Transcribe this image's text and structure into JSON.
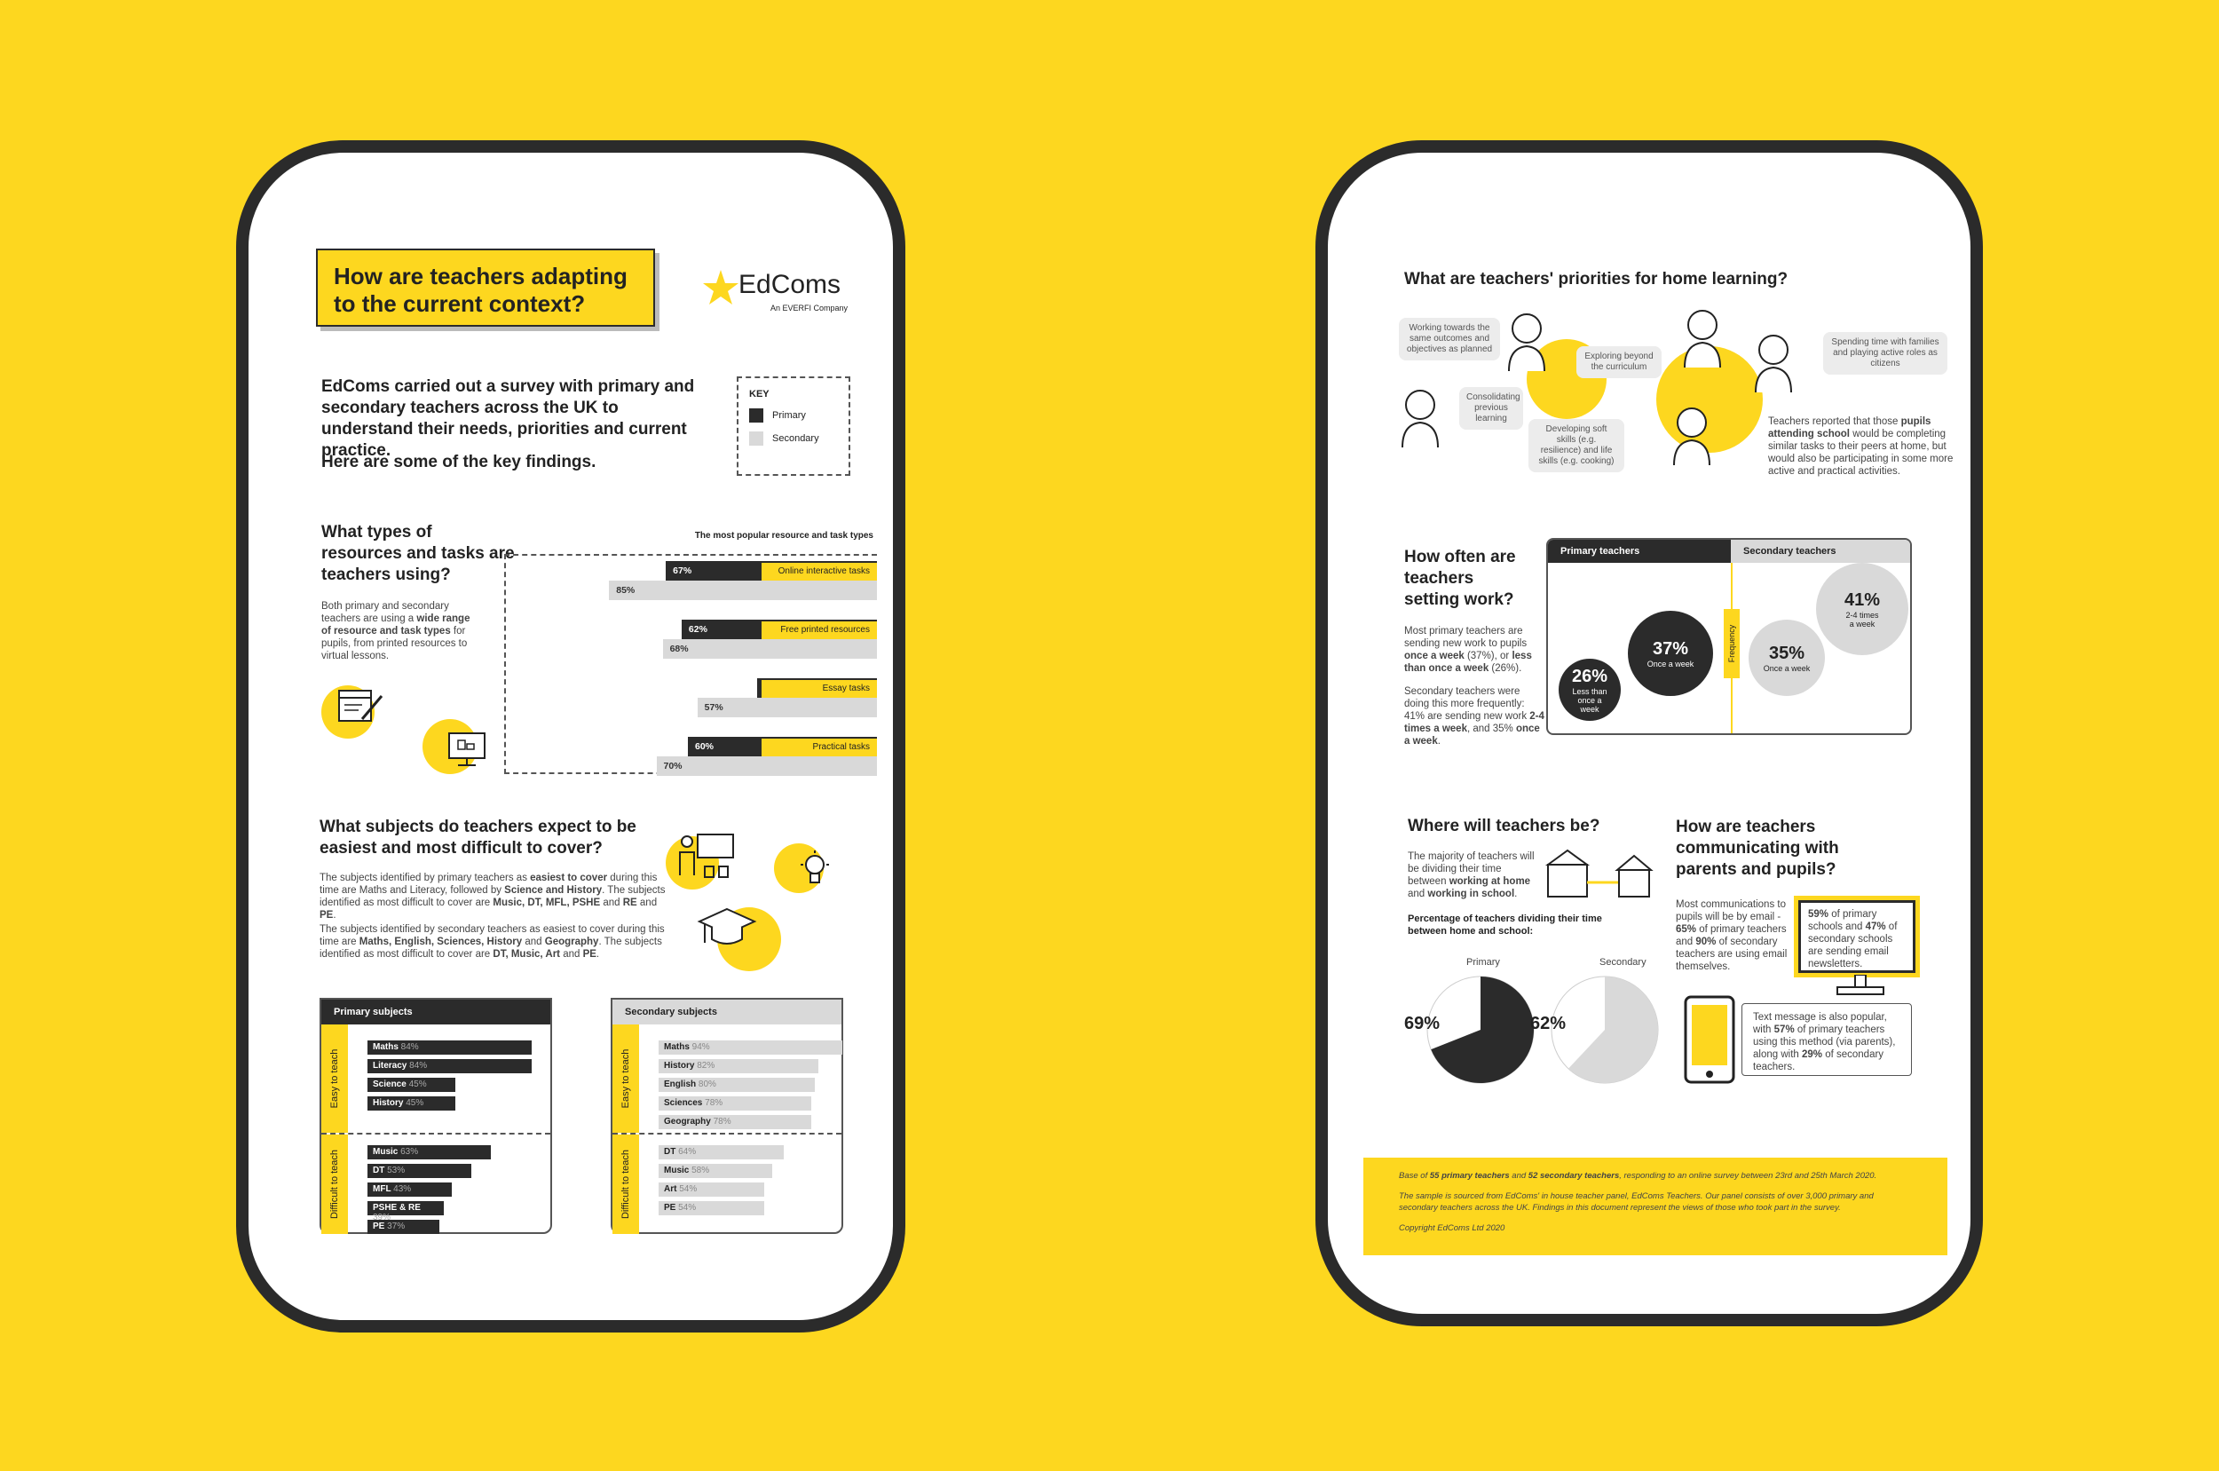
{
  "left": {
    "title": "How are teachers adapting to the current context?",
    "logo": {
      "name": "EdComs",
      "sub": "An EVERFI Company"
    },
    "intro": "EdComs carried out a survey with primary and secondary teachers across the UK to understand their needs, priorities and current practice.",
    "intro2": "Here are some of the key findings.",
    "key": {
      "title": "KEY",
      "primary": "Primary",
      "secondary": "Secondary"
    },
    "resources": {
      "question": "What types of resources and tasks are teachers using?",
      "desc_a": "Both primary and secondary teachers are using a ",
      "desc_b": "wide range of resource and task types",
      "desc_c": " for pupils, from printed resources to virtual lessons.",
      "chart_title": "The most popular resource and task types"
    },
    "subjects": {
      "question": "What subjects do teachers expect to be easiest and most difficult to cover?",
      "p1_a": "The subjects identified by primary teachers as ",
      "p1_b": "easiest to cover",
      "p1_c": " during this time are Maths and Literacy, followed by ",
      "p1_d": "Science and History",
      "p1_e": ". The subjects identified as most difficult to cover are ",
      "p1_f": "Music, DT, MFL, PSHE",
      "p1_g": " and ",
      "p1_h": "RE",
      "p1_i": " and ",
      "p1_j": "PE",
      "p1_k": ".",
      "p2_a": "The subjects identified by secondary teachers as easiest to cover during this time are ",
      "p2_b": "Maths, English, Sciences, History",
      "p2_c": " and ",
      "p2_d": "Geography",
      "p2_e": ". The subjects identified as most difficult to cover are ",
      "p2_f": "DT, Music, Art",
      "p2_g": " and ",
      "p2_h": "PE",
      "p2_i": ".",
      "primary_head": "Primary subjects",
      "secondary_head": "Secondary subjects",
      "easy_label": "Easy to teach",
      "difficult_label": "Difficult to teach"
    }
  },
  "right": {
    "priorities": {
      "question": "What are teachers' priorities for home learning?",
      "b1": "Working towards the same outcomes and objectives as planned",
      "b2": "Exploring beyond the curriculum",
      "b3": "Spending time with families and playing active roles as citizens",
      "b4": "Consolidating previous learning",
      "b5": "Developing soft skills (e.g. resilience) and life skills (e.g. cooking)",
      "note_a": "Teachers reported that those ",
      "note_b": "pupils attending school",
      "note_c": " would be completing similar tasks to their peers at home, but would also be participating in some more active and practical activities."
    },
    "frequency": {
      "question": "How often are teachers setting work?",
      "p1_a": "Most primary teachers are sending new work to pupils ",
      "p1_b": "once a week",
      "p1_c": " (37%), or ",
      "p1_d": "less than once a week",
      "p1_e": " (26%).",
      "p2_a": "Secondary teachers were doing this more frequently: 41% are sending new work ",
      "p2_b": "2-4 times a week",
      "p2_c": ", and 35% ",
      "p2_d": "once a week",
      "p2_e": ".",
      "primary_head": "Primary teachers",
      "secondary_head": "Secondary teachers",
      "axis": "Frequency",
      "p37": "37%",
      "p37_l": "Once a week",
      "p26": "26%",
      "p26_l": "Less than once a week",
      "s35": "35%",
      "s35_l": "Once a week",
      "s41": "41%",
      "s41_l": "2-4 times a week"
    },
    "where": {
      "question": "Where will teachers be?",
      "p_a": "The majority of teachers will be dividing their time between ",
      "p_b": "working at home",
      "p_c": " and ",
      "p_d": "working in school",
      "p_e": ".",
      "sub": "Percentage of teachers dividing their time between home and school:",
      "primary": "Primary",
      "secondary": "Secondary",
      "primary_pct": "69%",
      "secondary_pct": "62%",
      "primary_value": 69,
      "secondary_value": 62
    },
    "comm": {
      "question": "How are teachers communicating with parents and pupils?",
      "p_a": "Most communications to pupils will be by email - ",
      "p_b": "65%",
      "p_c": " of primary teachers and ",
      "p_d": "90%",
      "p_e": " of secondary teachers are using email themselves.",
      "box1_a": "59%",
      "box1_b": " of primary schools and ",
      "box1_c": "47%",
      "box1_d": " of secondary schools are sending email newsletters.",
      "box2_a": "Text message is also popular, with ",
      "box2_b": "57%",
      "box2_c": " of primary teachers using this method (via parents), along with ",
      "box2_d": "29%",
      "box2_e": " of secondary teachers."
    },
    "footer": {
      "l1_a": "Base of ",
      "l1_b": "55 primary teachers",
      "l1_c": " and ",
      "l1_d": "52 secondary teachers",
      "l1_e": ", responding to an online survey between 23rd and 25th March 2020.",
      "l2": "The sample is sourced from EdComs' in house teacher panel, EdComs Teachers. Our panel consists of over 3,000 primary and secondary teachers across the UK. Findings in this document represent the views of those who took part in the survey.",
      "l3": "Copyright EdComs Ltd 2020"
    }
  },
  "chart_data": [
    {
      "type": "bar",
      "title": "The most popular resource and task types",
      "categories": [
        "Online interactive tasks",
        "Free printed resources",
        "Essay tasks",
        "Practical tasks"
      ],
      "series": [
        {
          "name": "Primary",
          "values": [
            67,
            62,
            38,
            60
          ]
        },
        {
          "name": "Secondary",
          "values": [
            85,
            68,
            57,
            70
          ]
        }
      ],
      "xlim": [
        0,
        100
      ]
    },
    {
      "type": "bar",
      "title": "Primary subjects",
      "easy": [
        {
          "label": "Maths",
          "value": 84
        },
        {
          "label": "Literacy",
          "value": 84
        },
        {
          "label": "Science",
          "value": 45
        },
        {
          "label": "History",
          "value": 45
        }
      ],
      "difficult": [
        {
          "label": "Music",
          "value": 63
        },
        {
          "label": "DT",
          "value": 53
        },
        {
          "label": "MFL",
          "value": 43
        },
        {
          "label": "PSHE & RE",
          "value": 39
        },
        {
          "label": "PE",
          "value": 37
        }
      ]
    },
    {
      "type": "bar",
      "title": "Secondary subjects",
      "easy": [
        {
          "label": "Maths",
          "value": 94
        },
        {
          "label": "History",
          "value": 82
        },
        {
          "label": "English",
          "value": 80
        },
        {
          "label": "Sciences",
          "value": 78
        },
        {
          "label": "Geography",
          "value": 78
        }
      ],
      "difficult": [
        {
          "label": "DT",
          "value": 64
        },
        {
          "label": "Music",
          "value": 58
        },
        {
          "label": "Art",
          "value": 54
        },
        {
          "label": "PE",
          "value": 54
        }
      ]
    }
  ],
  "colors": {
    "accent": "#FDD71F",
    "dark": "#2b2b2b",
    "grey": "#d9d9d9"
  }
}
